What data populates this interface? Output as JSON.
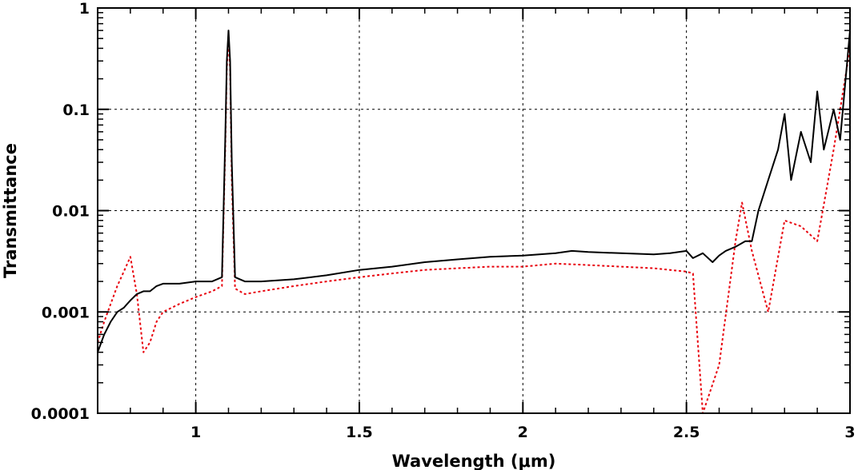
{
  "chart_data": {
    "type": "line",
    "xlabel": "Wavelength (μm)",
    "ylabel": "Transmittance",
    "xlim": [
      0.7,
      3.0
    ],
    "ylim": [
      0.0001,
      1
    ],
    "yscale": "log",
    "grid": true,
    "x_ticks": [
      1,
      1.5,
      2,
      2.5,
      3
    ],
    "x_tick_labels": [
      "1",
      "1.5",
      "2",
      "2.5",
      "3"
    ],
    "y_ticks": [
      0.0001,
      0.001,
      0.01,
      0.1,
      1
    ],
    "y_tick_labels": [
      "0.0001",
      "0.001",
      "0.01",
      "0.1",
      "1"
    ],
    "series": [
      {
        "color": "#000000",
        "style": "solid",
        "x": [
          0.7,
          0.72,
          0.74,
          0.76,
          0.78,
          0.8,
          0.82,
          0.84,
          0.86,
          0.88,
          0.9,
          0.95,
          1.0,
          1.05,
          1.08,
          1.09,
          1.095,
          1.1,
          1.105,
          1.11,
          1.12,
          1.15,
          1.2,
          1.3,
          1.4,
          1.5,
          1.6,
          1.7,
          1.8,
          1.9,
          2.0,
          2.1,
          2.15,
          2.2,
          2.3,
          2.4,
          2.45,
          2.5,
          2.52,
          2.55,
          2.58,
          2.6,
          2.62,
          2.65,
          2.68,
          2.7,
          2.72,
          2.75,
          2.78,
          2.8,
          2.82,
          2.85,
          2.88,
          2.9,
          2.92,
          2.95,
          2.97,
          3.0
        ],
        "y": [
          0.0004,
          0.0006,
          0.0008,
          0.001,
          0.0011,
          0.0013,
          0.0015,
          0.0016,
          0.0016,
          0.0018,
          0.0019,
          0.0019,
          0.002,
          0.002,
          0.0022,
          0.05,
          0.3,
          0.6,
          0.3,
          0.03,
          0.0022,
          0.002,
          0.002,
          0.0021,
          0.0023,
          0.0026,
          0.0028,
          0.0031,
          0.0033,
          0.0035,
          0.0036,
          0.0038,
          0.004,
          0.0039,
          0.0038,
          0.0037,
          0.0038,
          0.004,
          0.0034,
          0.0038,
          0.0031,
          0.0036,
          0.004,
          0.0044,
          0.005,
          0.005,
          0.01,
          0.02,
          0.04,
          0.09,
          0.02,
          0.06,
          0.03,
          0.15,
          0.04,
          0.1,
          0.05,
          0.6
        ]
      },
      {
        "color": "#e8000b",
        "style": "dotted",
        "x": [
          0.7,
          0.72,
          0.74,
          0.76,
          0.78,
          0.8,
          0.82,
          0.84,
          0.86,
          0.88,
          0.9,
          0.95,
          1.0,
          1.05,
          1.08,
          1.09,
          1.095,
          1.1,
          1.105,
          1.11,
          1.12,
          1.15,
          1.2,
          1.3,
          1.4,
          1.5,
          1.6,
          1.7,
          1.8,
          1.9,
          2.0,
          2.1,
          2.2,
          2.3,
          2.4,
          2.5,
          2.52,
          2.55,
          2.6,
          2.65,
          2.67,
          2.7,
          2.75,
          2.8,
          2.85,
          2.9,
          2.95,
          3.0
        ],
        "y": [
          0.0005,
          0.0008,
          0.0012,
          0.0018,
          0.0025,
          0.0035,
          0.0015,
          0.0004,
          0.0005,
          0.0008,
          0.001,
          0.0012,
          0.0014,
          0.0016,
          0.0018,
          0.04,
          0.25,
          0.5,
          0.25,
          0.02,
          0.0017,
          0.0015,
          0.0016,
          0.0018,
          0.002,
          0.0022,
          0.0024,
          0.0026,
          0.0027,
          0.0028,
          0.0028,
          0.003,
          0.0029,
          0.0028,
          0.0027,
          0.0025,
          0.0024,
          0.0001,
          0.0003,
          0.005,
          0.012,
          0.004,
          0.001,
          0.008,
          0.007,
          0.005,
          0.04,
          0.4
        ]
      }
    ]
  }
}
